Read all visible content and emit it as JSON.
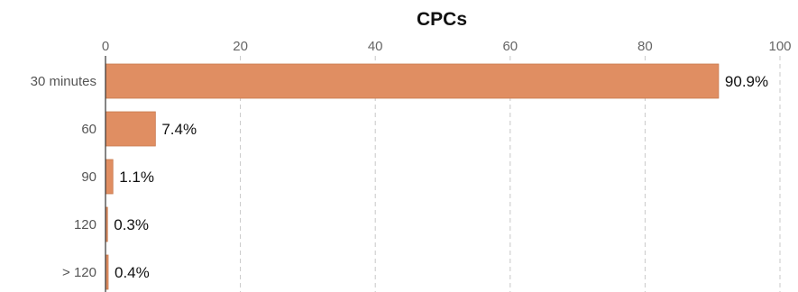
{
  "chart_data": {
    "type": "bar",
    "orientation": "horizontal",
    "title": "CPCs",
    "xlabel": "",
    "ylabel": "",
    "xlim": [
      0,
      100
    ],
    "x_ticks": [
      0,
      20,
      40,
      60,
      80,
      100
    ],
    "x_axis_position": "top",
    "grid": true,
    "categories": [
      "30 minutes",
      "60",
      "90",
      "120",
      "> 120"
    ],
    "values": [
      90.9,
      7.4,
      1.1,
      0.3,
      0.4
    ],
    "data_labels": [
      "90.9%",
      "7.4%",
      "1.1%",
      "0.3%",
      "0.4%"
    ],
    "bar_color": "#e08e62",
    "bar_edge_color": "#c97a50"
  }
}
